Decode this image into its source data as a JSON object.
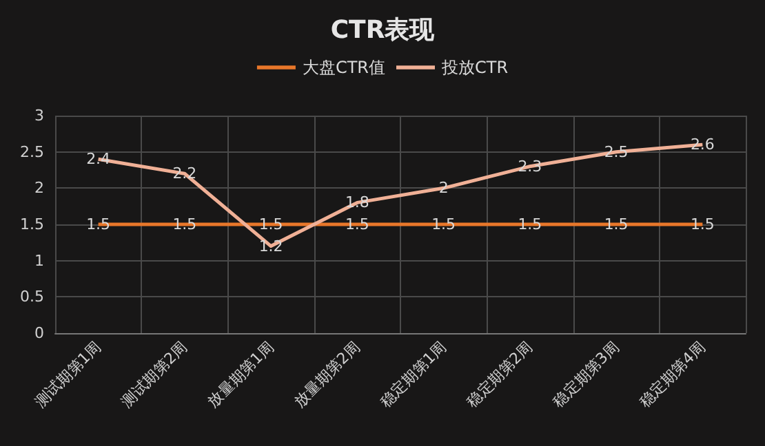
{
  "chart_data": {
    "type": "line",
    "title": "CTR表现",
    "categories": [
      "测试期第1周",
      "测试期第2周",
      "放量期第1周",
      "放量期第2周",
      "稳定期第1周",
      "稳定期第2周",
      "稳定期第3周",
      "稳定期第4周"
    ],
    "series": [
      {
        "name": "大盘CTR值",
        "color": "#e8772a",
        "values": [
          1.5,
          1.5,
          1.5,
          1.5,
          1.5,
          1.5,
          1.5,
          1.5
        ]
      },
      {
        "name": "投放CTR",
        "color": "#f0b096",
        "values": [
          2.4,
          2.2,
          1.2,
          1.8,
          2,
          2.3,
          2.5,
          2.6
        ]
      }
    ],
    "ylim": [
      0,
      3
    ],
    "yticks": [
      0,
      0.5,
      1,
      1.5,
      2,
      2.5,
      3
    ],
    "grid": true,
    "legend": "top",
    "marker": "none",
    "data_labels": true
  }
}
